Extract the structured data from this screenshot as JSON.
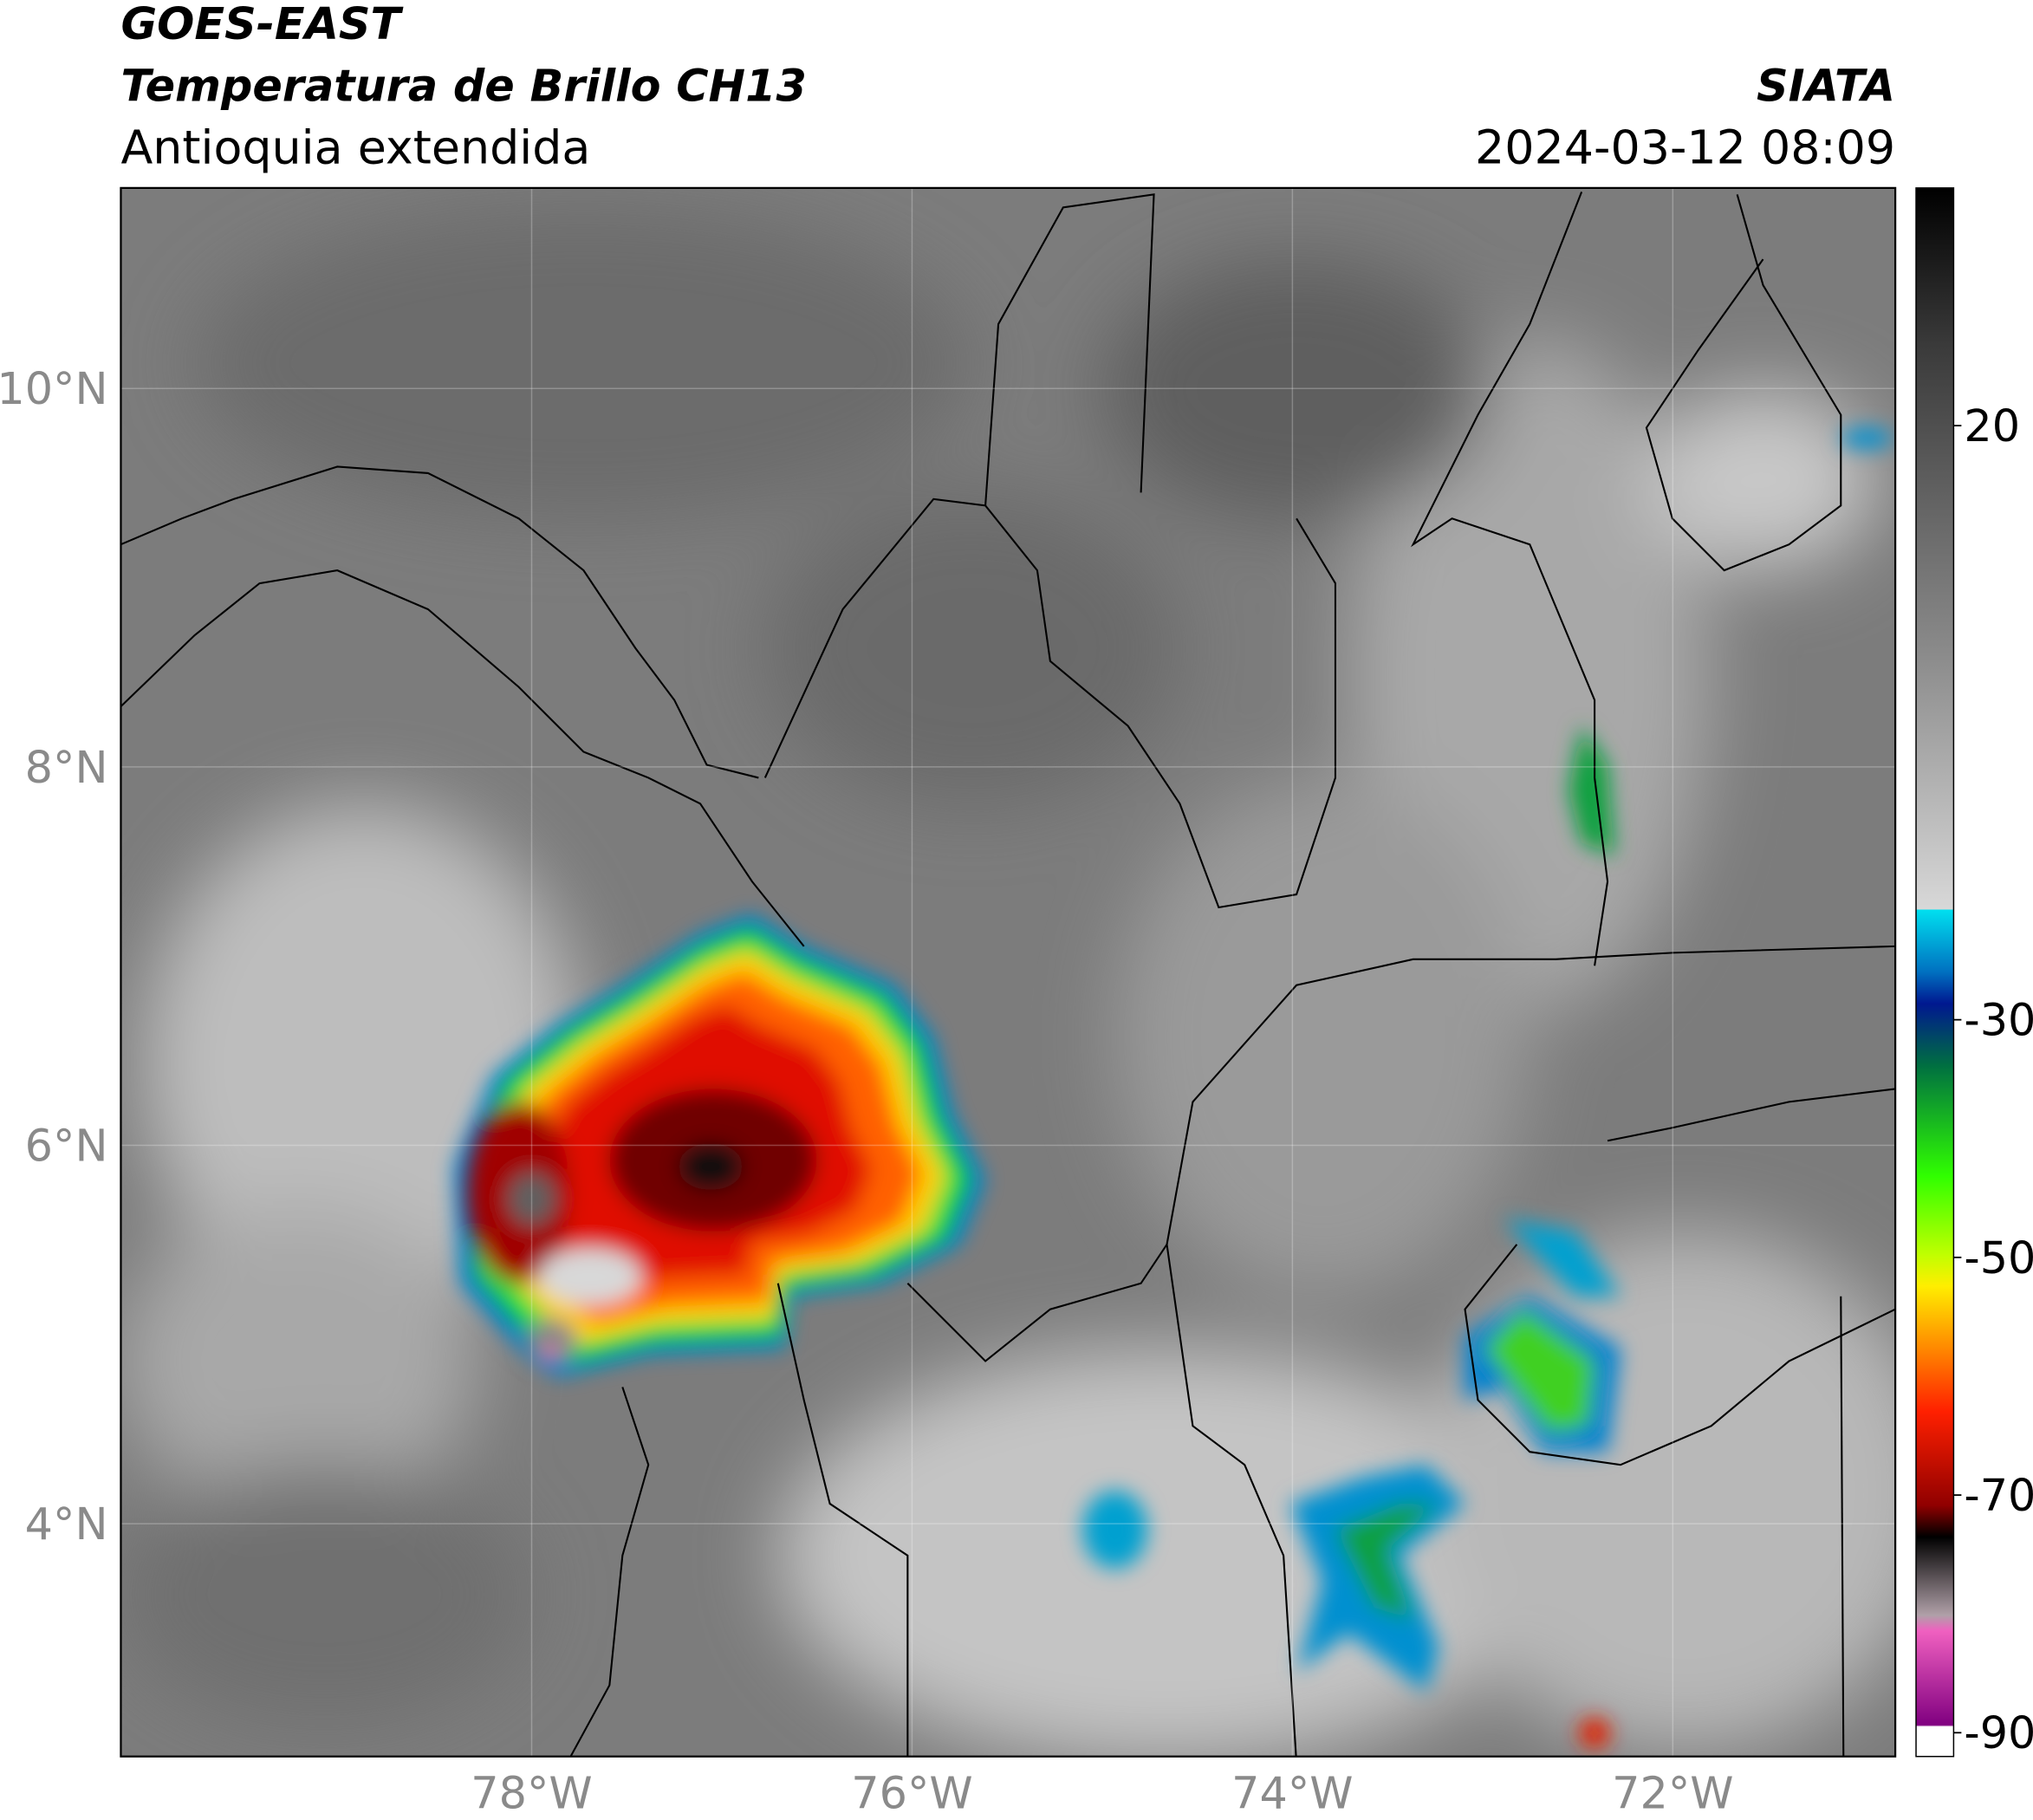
{
  "header": {
    "title": "GOES-EAST",
    "subtitle": "Temperatura de Brillo CH13",
    "region": "Antioquia extendida",
    "source": "SIATA",
    "datetime": "2024-03-12 08:09"
  },
  "map": {
    "latlim": [
      2.77,
      11.06
    ],
    "lonlim": [
      -80.16,
      -70.83
    ],
    "lat_ticks": [
      {
        "value": 10,
        "label": "10°N"
      },
      {
        "value": 8,
        "label": "8°N"
      },
      {
        "value": 6,
        "label": "6°N"
      },
      {
        "value": 4,
        "label": "4°N"
      }
    ],
    "lon_ticks": [
      {
        "value": -78,
        "label": "78°W"
      },
      {
        "value": -76,
        "label": "76°W"
      },
      {
        "value": -74,
        "label": "74°W"
      },
      {
        "value": -72,
        "label": "72°W"
      }
    ],
    "grid": true
  },
  "colorbar": {
    "lim": [
      -92,
      40
    ],
    "ticks": [
      20,
      -30,
      -50,
      -70,
      -90
    ]
  }
}
